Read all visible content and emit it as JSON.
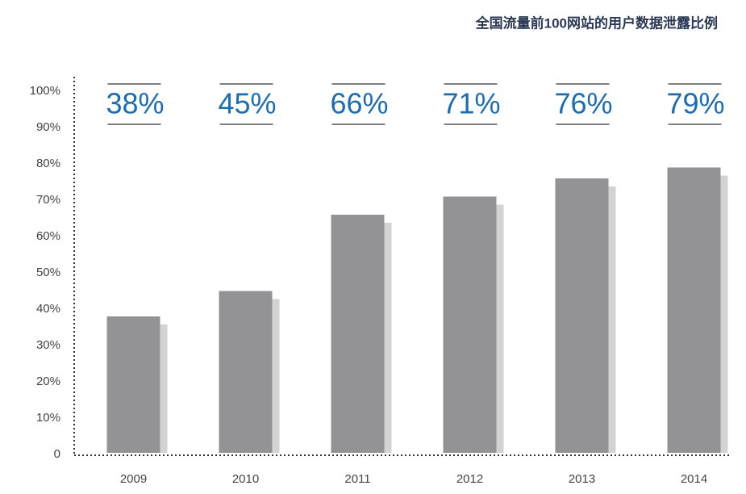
{
  "chart_data": {
    "type": "bar",
    "title": "全国流量前100网站的用户数据泄露比例",
    "categories": [
      "2009",
      "2010",
      "2011",
      "2012",
      "2013",
      "2014"
    ],
    "values": [
      38,
      45,
      66,
      71,
      76,
      79
    ],
    "value_labels": [
      "38%",
      "45%",
      "66%",
      "71%",
      "76%",
      "79%"
    ],
    "color": "#939396",
    "label_color": "#1b6db3",
    "ylim": [
      0,
      100
    ],
    "yticks": [
      0,
      {
        "value": 10,
        "label": "10%"
      },
      {
        "value": 20,
        "label": "20%"
      },
      {
        "value": 30,
        "label": "30%"
      },
      {
        "value": 40,
        "label": "40%"
      },
      {
        "value": 50,
        "label": "50%"
      },
      {
        "value": 60,
        "label": "60%"
      },
      {
        "value": 70,
        "label": "70%"
      },
      {
        "value": 80,
        "label": "80%"
      },
      {
        "value": 90,
        "label": "90%"
      },
      {
        "value": 100,
        "label": "100%"
      }
    ],
    "grid": false
  }
}
